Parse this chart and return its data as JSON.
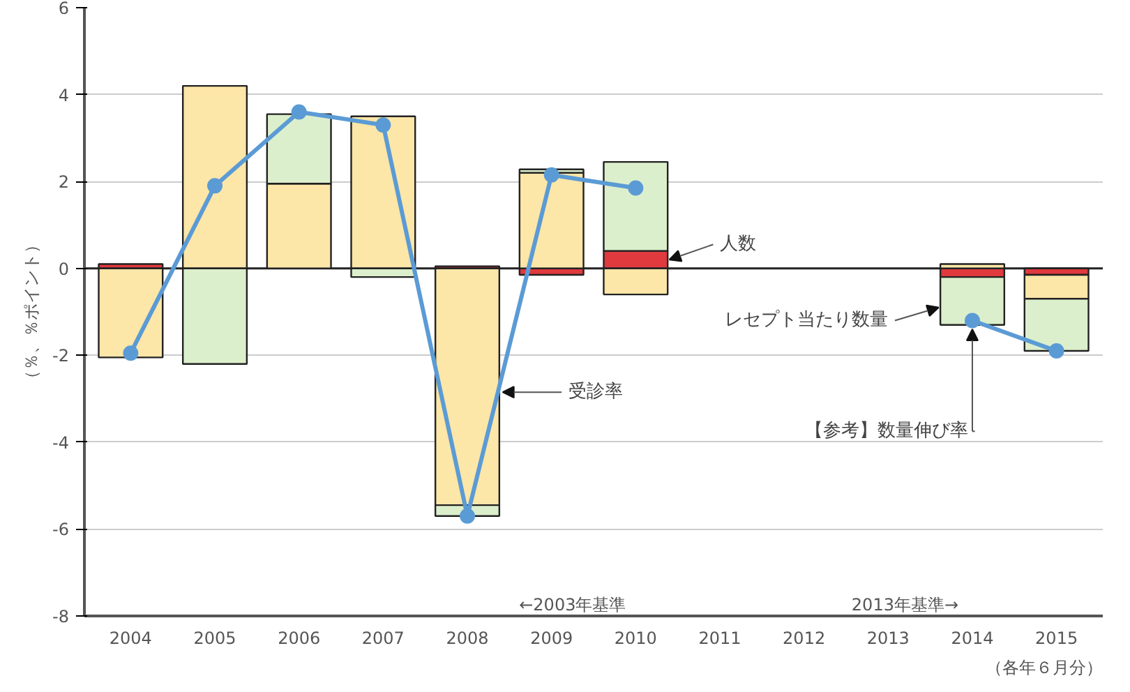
{
  "chart_data": {
    "type": "bar",
    "stacked": true,
    "ylabel": "（％、％ポイント）",
    "categories": [
      "2004",
      "2005",
      "2006",
      "2007",
      "2008",
      "2009",
      "2010",
      "2011",
      "2012",
      "2013",
      "2014",
      "2015"
    ],
    "series": [
      {
        "name": "人数",
        "color": "#e0393e",
        "values": [
          0.1,
          null,
          null,
          null,
          0.05,
          -0.15,
          0.4,
          null,
          null,
          null,
          -0.2,
          -0.15
        ]
      },
      {
        "name": "受診率",
        "color": "#fce6a8",
        "values": [
          -2.05,
          4.2,
          1.95,
          3.5,
          -5.45,
          2.2,
          -0.6,
          null,
          null,
          null,
          0.1,
          -0.55
        ]
      },
      {
        "name": "レセプト当たり数量",
        "color": "#dcefcc",
        "values": [
          null,
          -2.2,
          1.6,
          -0.2,
          -0.25,
          0.08,
          2.05,
          null,
          null,
          null,
          -1.1,
          -1.2
        ]
      },
      {
        "name": "【参考】数量伸び率",
        "type": "line",
        "color": "#5b9bd5",
        "marker": "circle",
        "values": [
          -1.95,
          1.9,
          3.6,
          3.3,
          -5.7,
          2.15,
          1.85,
          null,
          null,
          null,
          -1.2,
          -1.9
        ]
      }
    ],
    "ylim": [
      -8,
      6
    ],
    "yticks": [
      -8,
      -6,
      -4,
      -2,
      0,
      2,
      4,
      6
    ],
    "grid": "y",
    "annotations": [
      "←2003年基準",
      "2013年基準→",
      "（各年６月分）"
    ]
  }
}
